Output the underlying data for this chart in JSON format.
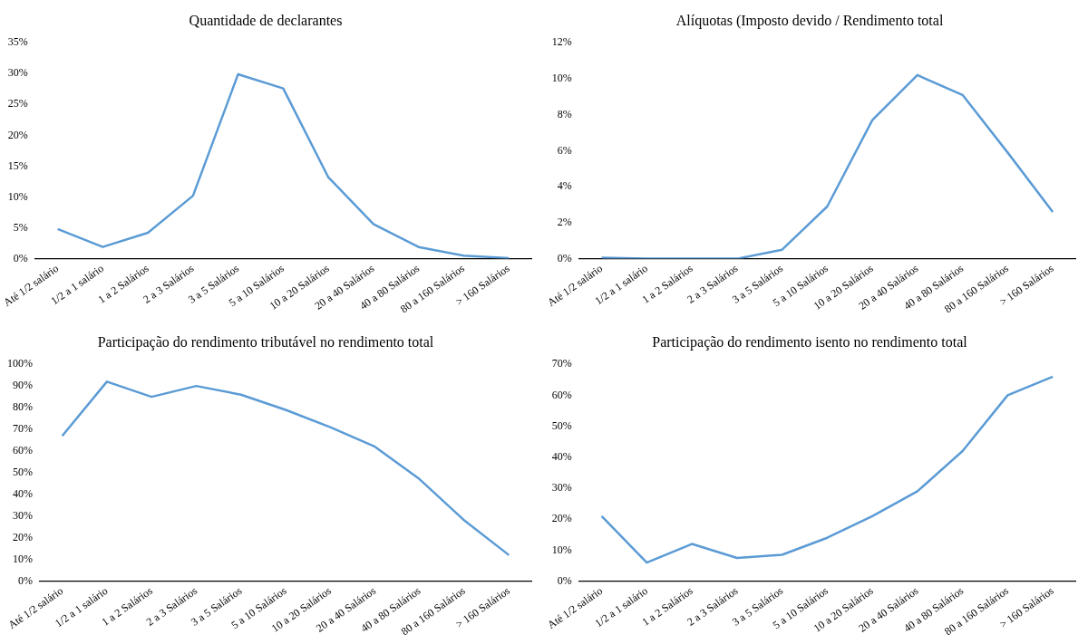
{
  "chart_data": [
    {
      "type": "line",
      "title": "Quantidade de declarantes",
      "categories": [
        "Até 1/2 salário",
        "1/2 a 1 salário",
        "1 a 2 Salários",
        "2 a 3 Salários",
        "3 a 5 Salários",
        "5 a 10 Salários",
        "10 a 20 Salários",
        "20 a 40 Salários",
        "40 a 80 Salários",
        "80 a 160 Salários",
        "> 160 Salários"
      ],
      "values": [
        4.8,
        1.9,
        4.2,
        10.2,
        29.9,
        27.6,
        13.2,
        5.6,
        1.9,
        0.5,
        0.1
      ],
      "color": "#5b9bd5",
      "ylim": [
        0,
        35
      ],
      "yticks": [
        {
          "value": 0,
          "label": "0%"
        },
        {
          "value": 5,
          "label": "5%"
        },
        {
          "value": 10,
          "label": "10%"
        },
        {
          "value": 15,
          "label": "15%"
        },
        {
          "value": 20,
          "label": "20%"
        },
        {
          "value": 25,
          "label": "25%"
        },
        {
          "value": 30,
          "label": "30%"
        },
        {
          "value": 35,
          "label": "35%"
        }
      ],
      "grid": false,
      "legend": false,
      "marker": "none"
    },
    {
      "type": "line",
      "title": "Alíquotas (Imposto devido / Rendimento total",
      "categories": [
        "Até 1/2 salário",
        "1/2 a 1 salário",
        "1 a 2 Salários",
        "2 a 3 Salários",
        "3 a 5 Salários",
        "5 a 10 Salários",
        "10 a 20 Salários",
        "20 a 40 Salários",
        "40 a 80 Salários",
        "80 a 160 Salários",
        "> 160 Salários"
      ],
      "values": [
        0.05,
        0,
        0,
        0,
        0.5,
        2.9,
        7.7,
        10.2,
        9.1,
        5.9,
        2.6
      ],
      "color": "#5b9bd5",
      "ylim": [
        0,
        12
      ],
      "yticks": [
        {
          "value": 0,
          "label": "0%"
        },
        {
          "value": 2,
          "label": "2%"
        },
        {
          "value": 4,
          "label": "4%"
        },
        {
          "value": 6,
          "label": "6%"
        },
        {
          "value": 8,
          "label": "8%"
        },
        {
          "value": 10,
          "label": "10%"
        },
        {
          "value": 12,
          "label": "12%"
        }
      ],
      "grid": false,
      "legend": false,
      "marker": "none"
    },
    {
      "type": "line",
      "title": "Participação do rendimento tributável no rendimento total",
      "categories": [
        "Até 1/2 salário",
        "1/2 a 1 salário",
        "1 a 2 Salários",
        "2 a 3 Salários",
        "3 a 5 Salários",
        "5 a 10 Salários",
        "10 a 20 Salários",
        "20 a 40 Salários",
        "40 a 80 Salários",
        "80 a 160 Salários",
        "> 160 Salários"
      ],
      "values": [
        67,
        92,
        85,
        90,
        86,
        79,
        71,
        62,
        47,
        28,
        12
      ],
      "color": "#5b9bd5",
      "ylim": [
        0,
        100
      ],
      "yticks": [
        {
          "value": 0,
          "label": "0%"
        },
        {
          "value": 10,
          "label": "10%"
        },
        {
          "value": 20,
          "label": "20%"
        },
        {
          "value": 30,
          "label": "30%"
        },
        {
          "value": 40,
          "label": "40%"
        },
        {
          "value": 50,
          "label": "50%"
        },
        {
          "value": 60,
          "label": "60%"
        },
        {
          "value": 70,
          "label": "70%"
        },
        {
          "value": 80,
          "label": "80%"
        },
        {
          "value": 90,
          "label": "90%"
        },
        {
          "value": 100,
          "label": "100%"
        }
      ],
      "grid": false,
      "legend": false,
      "marker": "none"
    },
    {
      "type": "line",
      "title": "Participação do rendimento isento no rendimento total",
      "categories": [
        "Até 1/2 salário",
        "1/2 a 1 salário",
        "1 a 2 Salários",
        "2 a 3 Salários",
        "3 a 5 Salários",
        "5 a 10 Salários",
        "10 a 20 Salários",
        "20 a 40 Salários",
        "40 a 80 Salários",
        "80 a 160 Salários",
        "> 160 Salários"
      ],
      "values": [
        21,
        6,
        12,
        7.5,
        8.5,
        14,
        21,
        29,
        42,
        60,
        66
      ],
      "color": "#5b9bd5",
      "ylim": [
        0,
        70
      ],
      "yticks": [
        {
          "value": 0,
          "label": "0%"
        },
        {
          "value": 10,
          "label": "10%"
        },
        {
          "value": 20,
          "label": "20%"
        },
        {
          "value": 30,
          "label": "30%"
        },
        {
          "value": 40,
          "label": "40%"
        },
        {
          "value": 50,
          "label": "50%"
        },
        {
          "value": 60,
          "label": "60%"
        },
        {
          "value": 70,
          "label": "70%"
        }
      ],
      "grid": false,
      "legend": false,
      "marker": "none"
    }
  ]
}
